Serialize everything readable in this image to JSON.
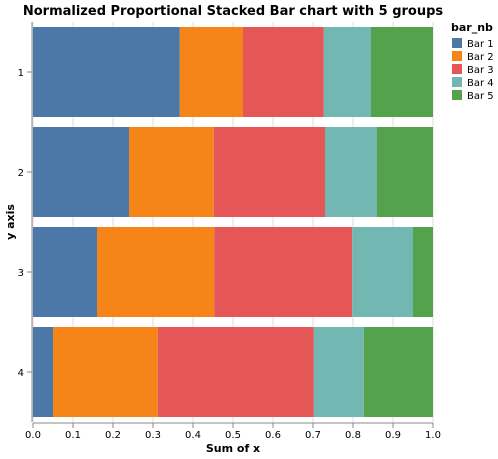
{
  "chart_data": {
    "type": "bar",
    "orientation": "horizontal",
    "stacked": true,
    "normalized": true,
    "title": "Normalized Proportional Stacked Bar chart with 5 groups",
    "xlabel": "Sum of x",
    "ylabel": "y axis",
    "xlim": [
      0,
      1
    ],
    "x_ticks": [
      "0.0",
      "0.1",
      "0.2",
      "0.3",
      "0.4",
      "0.5",
      "0.6",
      "0.7",
      "0.8",
      "0.9",
      "1.0"
    ],
    "categories": [
      "1",
      "2",
      "3",
      "4"
    ],
    "grid": true,
    "legend": {
      "title": "bar_nb",
      "position": "right"
    },
    "series": [
      {
        "name": "Bar 1",
        "color": "#4c78a8",
        "values": [
          0.367,
          0.24,
          0.16,
          0.05
        ]
      },
      {
        "name": "Bar 2",
        "color": "#f58518",
        "values": [
          0.158,
          0.212,
          0.293,
          0.262
        ]
      },
      {
        "name": "Bar 3",
        "color": "#e45756",
        "values": [
          0.202,
          0.278,
          0.345,
          0.39
        ]
      },
      {
        "name": "Bar 4",
        "color": "#72b7b2",
        "values": [
          0.118,
          0.13,
          0.152,
          0.125
        ]
      },
      {
        "name": "Bar 5",
        "color": "#54a24b",
        "values": [
          0.155,
          0.14,
          0.05,
          0.173
        ]
      }
    ]
  }
}
